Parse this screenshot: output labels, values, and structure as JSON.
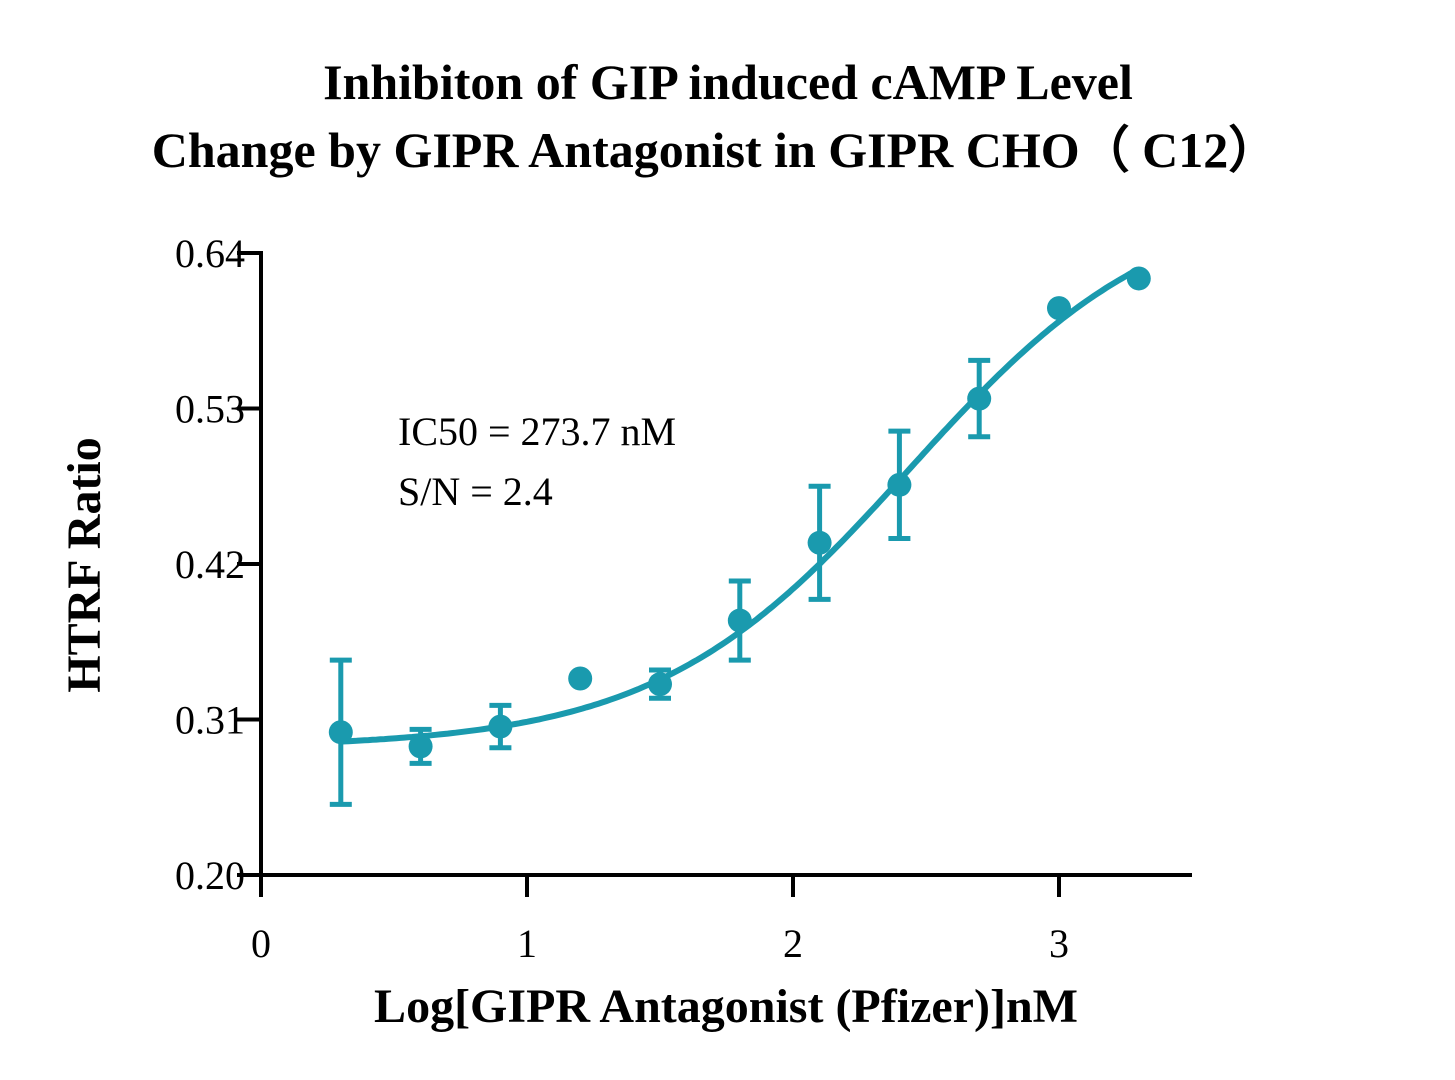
{
  "chart_data": {
    "type": "scatter",
    "title": [
      "Inhibiton of GIP induced cAMP Level",
      "Change by GIPR Antagonist in GIPR CHO（ C12）"
    ],
    "xlabel": "Log[GIPR Antagonist (Pfizer)]nM",
    "ylabel": "HTRF Ratio",
    "xlim": [
      0,
      3.5
    ],
    "ylim": [
      0.2,
      0.64
    ],
    "xticks": [
      "0",
      "1",
      "2",
      "3"
    ],
    "xtick_values": [
      0,
      1,
      2,
      3
    ],
    "yticks": [
      "0.20",
      "0.31",
      "0.42",
      "0.53",
      "0.64"
    ],
    "ytick_values": [
      0.2,
      0.31,
      0.42,
      0.53,
      0.64
    ],
    "grid": false,
    "color": "#1a9aae",
    "annotations": [
      "IC50 = 273.7 nM",
      "S/N = 2.4"
    ],
    "points": [
      {
        "x": 0.3,
        "y": 0.301,
        "err": 0.051
      },
      {
        "x": 0.6,
        "y": 0.291,
        "err": 0.012
      },
      {
        "x": 0.9,
        "y": 0.305,
        "err": 0.015
      },
      {
        "x": 1.2,
        "y": 0.339,
        "err": 0
      },
      {
        "x": 1.5,
        "y": 0.335,
        "err": 0.01
      },
      {
        "x": 1.8,
        "y": 0.38,
        "err": 0.028
      },
      {
        "x": 2.1,
        "y": 0.435,
        "err": 0.04
      },
      {
        "x": 2.4,
        "y": 0.476,
        "err": 0.038
      },
      {
        "x": 2.7,
        "y": 0.537,
        "err": 0.027
      },
      {
        "x": 3.0,
        "y": 0.601,
        "err": 0
      },
      {
        "x": 3.3,
        "y": 0.622,
        "err": 0
      }
    ],
    "fit": {
      "model": "four-parameter logistic",
      "bottom": 0.29,
      "top": 0.684,
      "logIC50": 2.437,
      "hill": 0.912,
      "x_range": [
        0.3,
        3.28
      ]
    }
  }
}
